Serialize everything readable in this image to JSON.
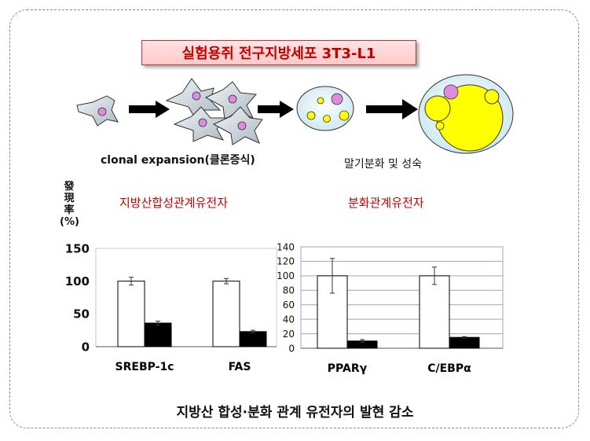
{
  "title": "실험용쥐 전구지방세포 3T3-L1",
  "diagram": {
    "stage1_caption": "clonal expansion(클론증식)",
    "stage2_caption": "말기분화 및 성숙"
  },
  "y_axis_label": "發現率 (%)",
  "sections": {
    "left": "지방산합성관계유전자",
    "right": "분화관계유전자"
  },
  "conclusion": "지방산 합성·분화 관계 유전자의 발현 감소",
  "colors": {
    "title_text": "#c00000",
    "section_text": "#c00000",
    "cell": "#e08be0",
    "fat": "#ffff00"
  },
  "chart_data": [
    {
      "type": "bar",
      "categories": [
        "SREBP-1c",
        "FAS"
      ],
      "series": [
        {
          "values": [
            100,
            100
          ],
          "errors": [
            6,
            4
          ],
          "color": "#ffffff"
        },
        {
          "values": [
            36,
            23
          ],
          "errors": [
            3,
            2
          ],
          "color": "#000000"
        }
      ],
      "ylim": [
        0,
        150
      ],
      "yticks": [
        0,
        50,
        100,
        150
      ]
    },
    {
      "type": "bar",
      "categories": [
        "PPARγ",
        "C/EBPα"
      ],
      "series": [
        {
          "values": [
            100,
            100
          ],
          "errors": [
            24,
            12
          ],
          "color": "#ffffff"
        },
        {
          "values": [
            10,
            15
          ],
          "errors": [
            2,
            1
          ],
          "color": "#000000"
        }
      ],
      "ylim": [
        0,
        140
      ],
      "yticks": [
        0,
        20,
        40,
        60,
        80,
        100,
        120,
        140
      ]
    }
  ]
}
